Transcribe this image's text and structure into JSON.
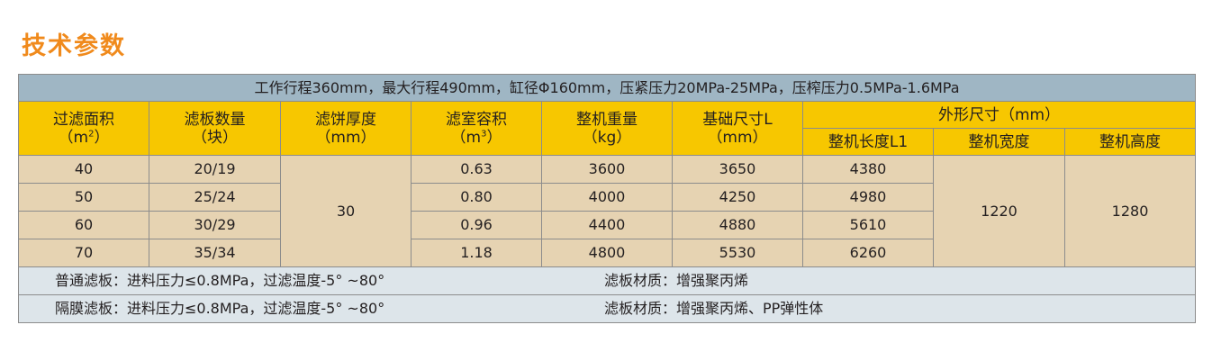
{
  "title": "技术参数",
  "banner": "工作行程360mm，最大行程490mm，缸径Φ160mm，压紧压力20MPa-25MPa，压榨压力0.5MPa-1.6MPa",
  "headers": {
    "area": {
      "label": "过滤面积",
      "unit_pre": "（m",
      "unit_sup": "2",
      "unit_post": "）"
    },
    "plates": {
      "label": "滤板数量",
      "unit": "（块）"
    },
    "cake": {
      "label": "滤饼厚度",
      "unit": "（mm）"
    },
    "volume": {
      "label": "滤室容积",
      "unit_pre": "（m",
      "unit_sup": "3",
      "unit_post": "）"
    },
    "weight": {
      "label": "整机重量",
      "unit": "（kg）"
    },
    "base": {
      "label": "基础尺寸L",
      "unit": "（mm）"
    },
    "outer": {
      "label": "外形尺寸（mm）"
    },
    "length": {
      "label": "整机长度L1"
    },
    "width": {
      "label": "整机宽度"
    },
    "height": {
      "label": "整机高度"
    }
  },
  "rows": [
    {
      "area": "40",
      "plates": "20/19",
      "volume": "0.63",
      "weight": "3600",
      "base": "3650",
      "length": "4380"
    },
    {
      "area": "50",
      "plates": "25/24",
      "volume": "0.80",
      "weight": "4000",
      "base": "4250",
      "length": "4980"
    },
    {
      "area": "60",
      "plates": "30/29",
      "volume": "0.96",
      "weight": "4400",
      "base": "4880",
      "length": "5610"
    },
    {
      "area": "70",
      "plates": "35/34",
      "volume": "1.18",
      "weight": "4800",
      "base": "5530",
      "length": "6260"
    }
  ],
  "shared": {
    "cake": "30",
    "width": "1220",
    "height": "1280"
  },
  "notes": [
    {
      "left": "普通滤板：进料压力≤0.8MPa，过滤温度-5° ~80°",
      "right": "滤板材质：增强聚丙烯"
    },
    {
      "left": "隔膜滤板：进料压力≤0.8MPa，过滤温度-5° ~80°",
      "right": "滤板材质：增强聚丙烯、PP弹性体"
    }
  ]
}
